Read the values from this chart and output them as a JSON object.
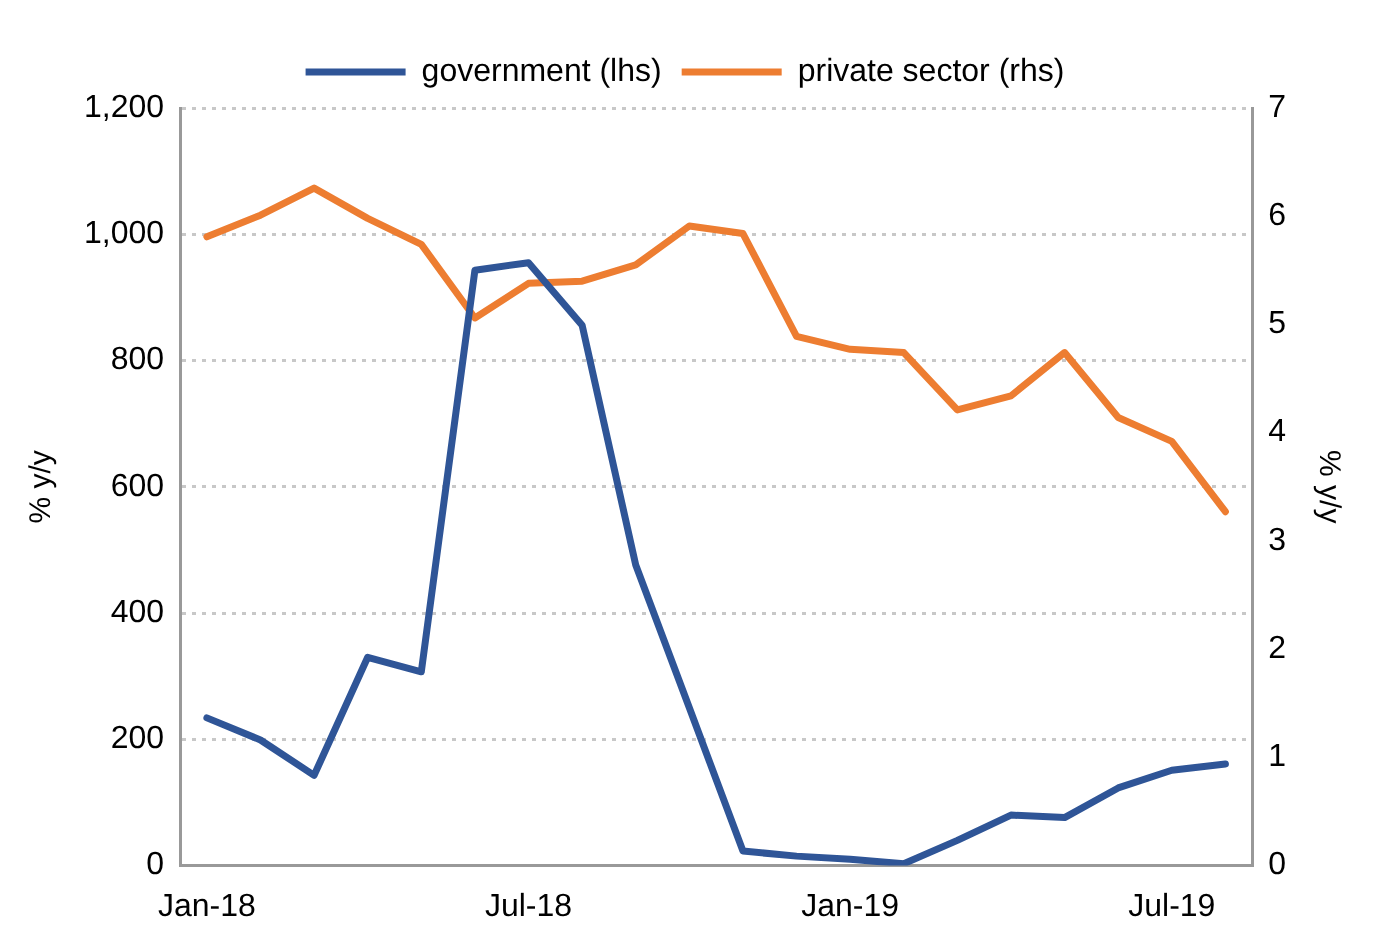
{
  "chart_data": {
    "type": "line",
    "categories": [
      "Jan-18",
      null,
      null,
      null,
      null,
      null,
      "Jul-18",
      null,
      null,
      null,
      null,
      null,
      "Jan-19",
      null,
      null,
      null,
      null,
      null,
      "Jul-19",
      null
    ],
    "ylabel": "% y/y",
    "y2label": "% y/y",
    "series": [
      {
        "name": "government (lhs)",
        "color": "#2f5597",
        "values": [
          234,
          199,
          143,
          330,
          307,
          943,
          955,
          856,
          476,
          250,
          23,
          15,
          10,
          3,
          40,
          80,
          76,
          123,
          151,
          161
        ]
      },
      {
        "name": "private sector (rhs)",
        "color": "#ed7d31",
        "axis": "y2",
        "values": [
          5.81,
          6.01,
          6.26,
          5.98,
          5.74,
          5.06,
          5.38,
          5.4,
          5.55,
          5.91,
          5.84,
          4.89,
          4.77,
          4.74,
          4.21,
          4.34,
          4.74,
          4.14,
          3.92,
          3.27
        ]
      }
    ],
    "ylim": [
      0,
      1200
    ],
    "yticks": [
      0,
      200,
      400,
      600,
      800,
      {
        "value": 1000,
        "label": "1,000"
      },
      {
        "value": 1200,
        "label": "1,200"
      }
    ],
    "y2lim": [
      0,
      7
    ],
    "y2ticks": [
      0,
      1,
      2,
      3,
      4,
      5,
      6,
      7
    ],
    "grid": "y",
    "legend": "top",
    "marker": "none",
    "line_style": "solid"
  }
}
